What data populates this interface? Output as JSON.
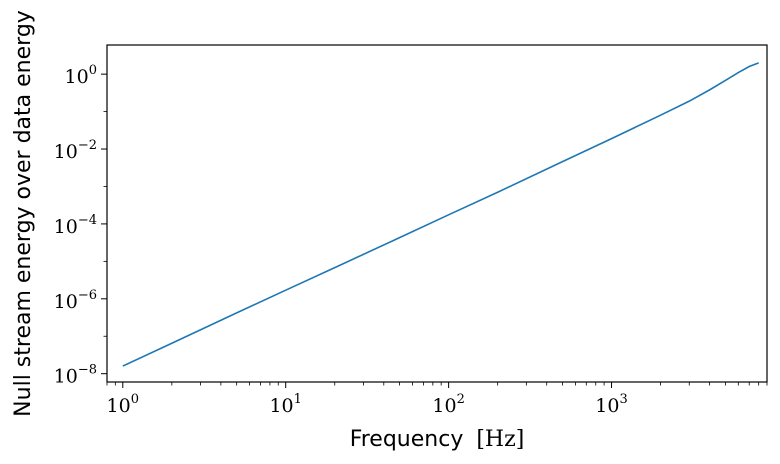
{
  "chart_data": {
    "type": "line",
    "xlabel_text": "Frequency",
    "xlabel_unit": "[Hz]",
    "ylabel": "Null stream energy over data energy",
    "x_scale": "log",
    "y_scale": "log",
    "xlim": [
      0.8,
      9000
    ],
    "ylim": [
      6e-09,
      6
    ],
    "grid": false,
    "x_ticks": [
      {
        "value": 1,
        "base": "10",
        "exp": "0"
      },
      {
        "value": 10,
        "base": "10",
        "exp": "1"
      },
      {
        "value": 100,
        "base": "10",
        "exp": "2"
      },
      {
        "value": 1000,
        "base": "10",
        "exp": "3"
      }
    ],
    "y_ticks": [
      {
        "value": 1e-08,
        "base": "10",
        "exp": "−8"
      },
      {
        "value": 1e-06,
        "base": "10",
        "exp": "−6"
      },
      {
        "value": 0.0001,
        "base": "10",
        "exp": "−4"
      },
      {
        "value": 0.01,
        "base": "10",
        "exp": "−2"
      },
      {
        "value": 1,
        "base": "10",
        "exp": "0"
      }
    ],
    "series": [
      {
        "color": "#1f77b4",
        "x": [
          1,
          2,
          5,
          10,
          20,
          50,
          100,
          200,
          500,
          1000,
          2000,
          3000,
          4000,
          5000,
          6000,
          7000,
          8000
        ],
        "y": [
          1.6e-08,
          6.5e-08,
          4.2e-07,
          1.7e-06,
          6.8e-06,
          4.3e-05,
          0.000175,
          0.0007,
          0.0046,
          0.019,
          0.08,
          0.19,
          0.38,
          0.68,
          1.1,
          1.6,
          2.0
        ]
      }
    ]
  }
}
